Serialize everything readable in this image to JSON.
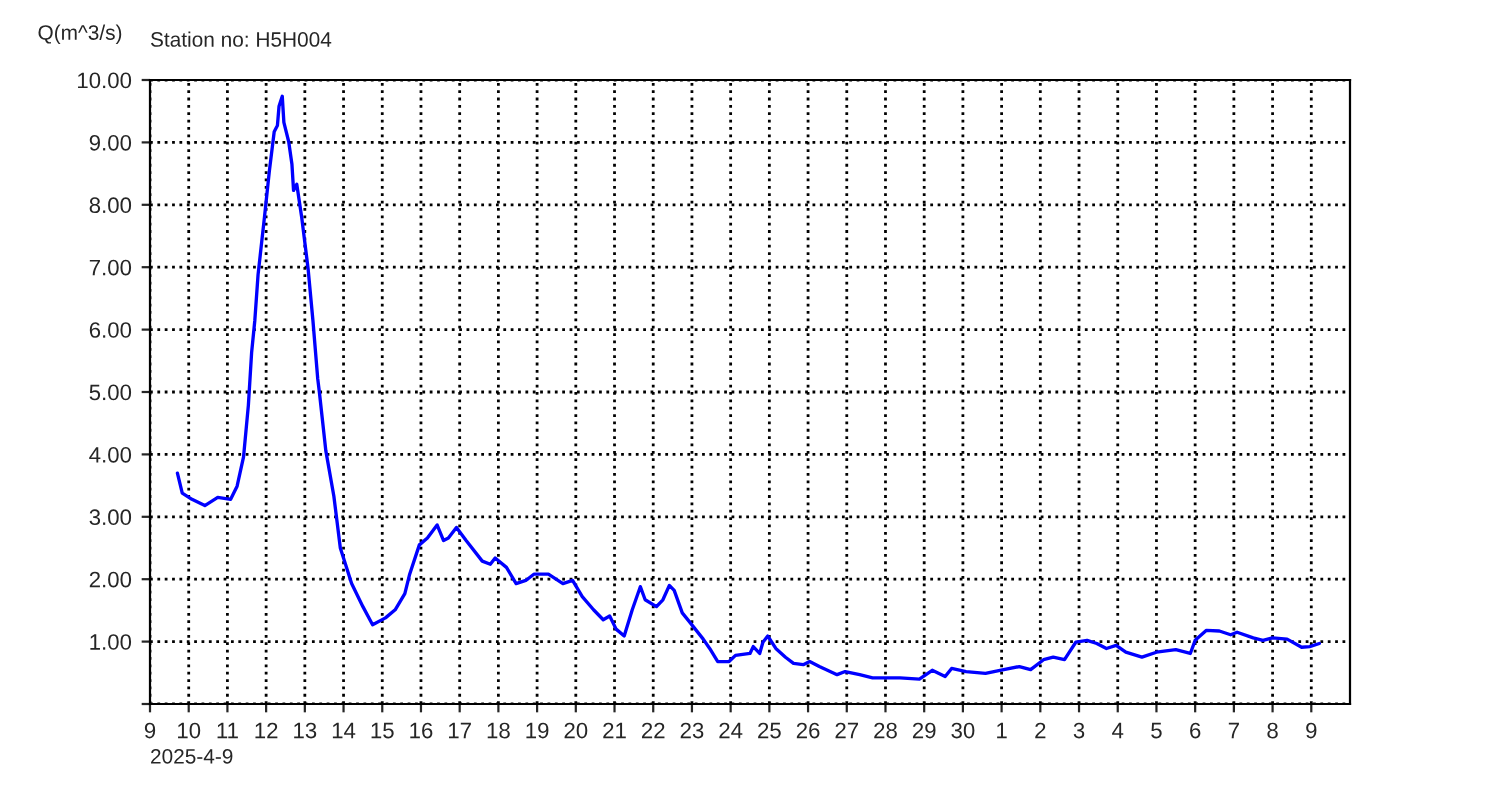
{
  "chart_data": {
    "type": "line",
    "title": "Station no: H5H004",
    "ylabel": "Q(m^3/s)",
    "annotations": [
      "2025-4-9"
    ],
    "x": [
      "2025-04-09T17:00",
      "2025-04-09T20:00",
      "2025-04-10T02:00",
      "2025-04-10T10:00",
      "2025-04-10T18:00",
      "2025-04-11T02:00",
      "2025-04-11T06:00",
      "2025-04-11T10:00",
      "2025-04-11T13:00",
      "2025-04-11T15:00",
      "2025-04-11T17:00",
      "2025-04-11T19:00",
      "2025-04-11T23:00",
      "2025-04-12T02:00",
      "2025-04-12T05:00",
      "2025-04-12T07:00",
      "2025-04-12T08:00",
      "2025-04-12T10:00",
      "2025-04-12T11:00",
      "2025-04-12T14:00",
      "2025-04-12T16:00",
      "2025-04-12T17:00",
      "2025-04-12T19:00",
      "2025-04-12T22:00",
      "2025-04-13T02:00",
      "2025-04-13T05:00",
      "2025-04-13T08:00",
      "2025-04-13T09:00",
      "2025-04-13T13:00",
      "2025-04-13T18:00",
      "2025-04-13T22:00",
      "2025-04-14T05:00",
      "2025-04-14T12:00",
      "2025-04-14T18:00",
      "2025-04-15T02:00",
      "2025-04-15T08:00",
      "2025-04-15T14:00",
      "2025-04-15T17:00",
      "2025-04-15T23:00",
      "2025-04-16T04:00",
      "2025-04-16T10:00",
      "2025-04-16T14:00",
      "2025-04-16T17:00",
      "2025-04-16T22:00",
      "2025-04-17T04:00",
      "2025-04-17T14:00",
      "2025-04-17T19:00",
      "2025-04-17T22:00",
      "2025-04-18T05:00",
      "2025-04-18T11:00",
      "2025-04-18T17:00",
      "2025-04-18T22:00",
      "2025-04-19T07:00",
      "2025-04-19T16:00",
      "2025-04-19T22:00",
      "2025-04-20T04:00",
      "2025-04-20T11:00",
      "2025-04-20T17:00",
      "2025-04-20T21:00",
      "2025-04-21T01:00",
      "2025-04-21T06:00",
      "2025-04-21T11:00",
      "2025-04-21T16:00",
      "2025-04-21T19:00",
      "2025-04-22T02:00",
      "2025-04-22T06:00",
      "2025-04-22T10:00",
      "2025-04-22T13:00",
      "2025-04-22T18:00",
      "2025-04-22T23:00",
      "2025-04-23T07:00",
      "2025-04-23T11:00",
      "2025-04-23T16:00",
      "2025-04-23T23:00",
      "2025-04-24T03:00",
      "2025-04-24T12:00",
      "2025-04-24T14:00",
      "2025-04-24T18:00",
      "2025-04-24T20:00",
      "2025-04-24T23:00",
      "2025-04-25T04:00",
      "2025-04-25T10:00",
      "2025-04-25T15:00",
      "2025-04-25T21:00",
      "2025-04-26T01:00",
      "2025-04-26T07:00",
      "2025-04-26T18:00",
      "2025-04-26T23:00",
      "2025-04-27T08:00",
      "2025-04-27T16:00",
      "2025-04-28T09:00",
      "2025-04-28T21:00",
      "2025-04-29T05:00",
      "2025-04-29T13:00",
      "2025-04-29T17:00",
      "2025-04-30T02:00",
      "2025-04-30T14:00",
      "2025-04-30T23:00",
      "2025-05-01T11:00",
      "2025-05-01T18:00",
      "2025-05-02T02:00",
      "2025-05-02T08:00",
      "2025-05-02T15:00",
      "2025-05-02T18:00",
      "2025-05-02T22:00",
      "2025-05-03T05:00",
      "2025-05-03T11:00",
      "2025-05-03T17:00",
      "2025-05-03T23:00",
      "2025-05-04T05:00",
      "2025-05-04T15:00",
      "2025-05-05T00:00",
      "2025-05-05T12:00",
      "2025-05-05T21:00",
      "2025-05-06T00:00",
      "2025-05-06T07:00",
      "2025-05-06T15:00",
      "2025-05-06T22:00",
      "2025-05-07T02:00",
      "2025-05-07T12:00",
      "2025-05-07T18:00",
      "2025-05-08T00:00",
      "2025-05-08T09:00",
      "2025-05-08T18:00",
      "2025-05-08T23:00",
      "2025-05-09T05:00"
    ],
    "series": [
      {
        "color": "#0000ff",
        "values": [
          3.7,
          3.38,
          3.28,
          3.18,
          3.31,
          3.28,
          3.49,
          3.96,
          4.79,
          5.63,
          6.15,
          6.88,
          7.81,
          8.54,
          9.17,
          9.27,
          9.58,
          9.74,
          9.32,
          9.01,
          8.65,
          8.23,
          8.33,
          7.81,
          6.98,
          6.15,
          5.21,
          5.0,
          4.06,
          3.33,
          2.5,
          1.93,
          1.56,
          1.27,
          1.38,
          1.51,
          1.77,
          2.08,
          2.55,
          2.66,
          2.87,
          2.62,
          2.66,
          2.83,
          2.62,
          2.29,
          2.24,
          2.34,
          2.19,
          1.93,
          1.98,
          2.08,
          2.08,
          1.93,
          1.98,
          1.72,
          1.51,
          1.35,
          1.41,
          1.2,
          1.09,
          1.51,
          1.88,
          1.67,
          1.56,
          1.67,
          1.9,
          1.82,
          1.46,
          1.3,
          1.04,
          0.89,
          0.68,
          0.68,
          0.78,
          0.81,
          0.92,
          0.81,
          0.99,
          1.09,
          0.89,
          0.75,
          0.65,
          0.63,
          0.68,
          0.6,
          0.47,
          0.52,
          0.47,
          0.42,
          0.42,
          0.4,
          0.54,
          0.44,
          0.57,
          0.52,
          0.49,
          0.54,
          0.6,
          0.55,
          0.71,
          0.75,
          0.71,
          0.83,
          0.99,
          1.02,
          0.97,
          0.89,
          0.94,
          0.83,
          0.75,
          0.83,
          0.87,
          0.81,
          1.02,
          1.18,
          1.17,
          1.11,
          1.15,
          1.06,
          1.02,
          1.06,
          1.04,
          0.91,
          0.92,
          0.97
        ]
      }
    ],
    "xlim": [
      "2025-04-09",
      "2025-05-10"
    ],
    "xticks": [
      {
        "value": "2025-04-09",
        "label": "9"
      },
      {
        "value": "2025-04-10",
        "label": "10"
      },
      {
        "value": "2025-04-11",
        "label": "11"
      },
      {
        "value": "2025-04-12",
        "label": "12"
      },
      {
        "value": "2025-04-13",
        "label": "13"
      },
      {
        "value": "2025-04-14",
        "label": "14"
      },
      {
        "value": "2025-04-15",
        "label": "15"
      },
      {
        "value": "2025-04-16",
        "label": "16"
      },
      {
        "value": "2025-04-17",
        "label": "17"
      },
      {
        "value": "2025-04-18",
        "label": "18"
      },
      {
        "value": "2025-04-19",
        "label": "19"
      },
      {
        "value": "2025-04-20",
        "label": "20"
      },
      {
        "value": "2025-04-21",
        "label": "21"
      },
      {
        "value": "2025-04-22",
        "label": "22"
      },
      {
        "value": "2025-04-23",
        "label": "23"
      },
      {
        "value": "2025-04-24",
        "label": "24"
      },
      {
        "value": "2025-04-25",
        "label": "25"
      },
      {
        "value": "2025-04-26",
        "label": "26"
      },
      {
        "value": "2025-04-27",
        "label": "27"
      },
      {
        "value": "2025-04-28",
        "label": "28"
      },
      {
        "value": "2025-04-29",
        "label": "29"
      },
      {
        "value": "2025-04-30",
        "label": "30"
      },
      {
        "value": "2025-05-01",
        "label": "1"
      },
      {
        "value": "2025-05-02",
        "label": "2"
      },
      {
        "value": "2025-05-03",
        "label": "3"
      },
      {
        "value": "2025-05-04",
        "label": "4"
      },
      {
        "value": "2025-05-05",
        "label": "5"
      },
      {
        "value": "2025-05-06",
        "label": "6"
      },
      {
        "value": "2025-05-07",
        "label": "7"
      },
      {
        "value": "2025-05-08",
        "label": "8"
      },
      {
        "value": "2025-05-09",
        "label": "9"
      }
    ],
    "ylim": [
      0,
      10
    ],
    "yticks": [
      {
        "value": 0,
        "label": null
      },
      {
        "value": 1,
        "label": "1.00"
      },
      {
        "value": 2,
        "label": "2.00"
      },
      {
        "value": 3,
        "label": "3.00"
      },
      {
        "value": 4,
        "label": "4.00"
      },
      {
        "value": 5,
        "label": "5.00"
      },
      {
        "value": 6,
        "label": "6.00"
      },
      {
        "value": 7,
        "label": "7.00"
      },
      {
        "value": 8,
        "label": "8.00"
      },
      {
        "value": 9,
        "label": "9.00"
      },
      {
        "value": 10,
        "label": "10.00"
      }
    ],
    "grid": true,
    "line_style": "solid",
    "legend": false
  }
}
